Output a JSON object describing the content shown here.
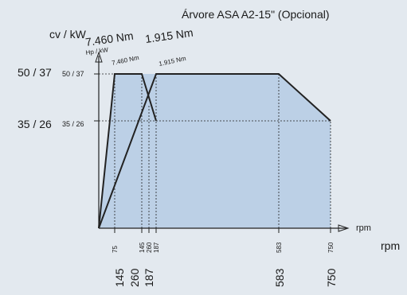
{
  "chart_data": {
    "type": "area",
    "title": "Árvore ASA A2-15\" (Opcional)",
    "ylabel": "cv / kW",
    "ylabel_small": "Hp / kW",
    "xlabel": "rpm",
    "xlabel_small": "rpm",
    "xlim": [
      0,
      750
    ],
    "ylim": [
      0,
      60
    ],
    "x_ticks_small": [
      "75",
      "145",
      "260",
      "187",
      "583",
      "750"
    ],
    "x_ticks_big": [
      "145",
      "260",
      "187",
      "583",
      "750"
    ],
    "y_ticks_small": [
      "50 / 37",
      "35 / 26"
    ],
    "y_ticks_big": [
      "50 / 37",
      "35 / 26"
    ],
    "torque_labels_big": [
      "7.460 Nm",
      "1.915 Nm"
    ],
    "torque_labels_small": [
      "7.460 Nm",
      "1.915 Nm"
    ],
    "series": [
      {
        "x": [
          0,
          75,
          260,
          750
        ],
        "y": [
          0,
          50,
          50,
          0
        ]
      },
      {
        "x": [
          0,
          75,
          145,
          187,
          583,
          750
        ],
        "y": [
          0,
          50,
          50,
          35,
          50,
          35
        ]
      }
    ],
    "colors": {
      "fill": "#bcd0e6",
      "line": "#222222",
      "background": "#e3e9ef"
    }
  }
}
